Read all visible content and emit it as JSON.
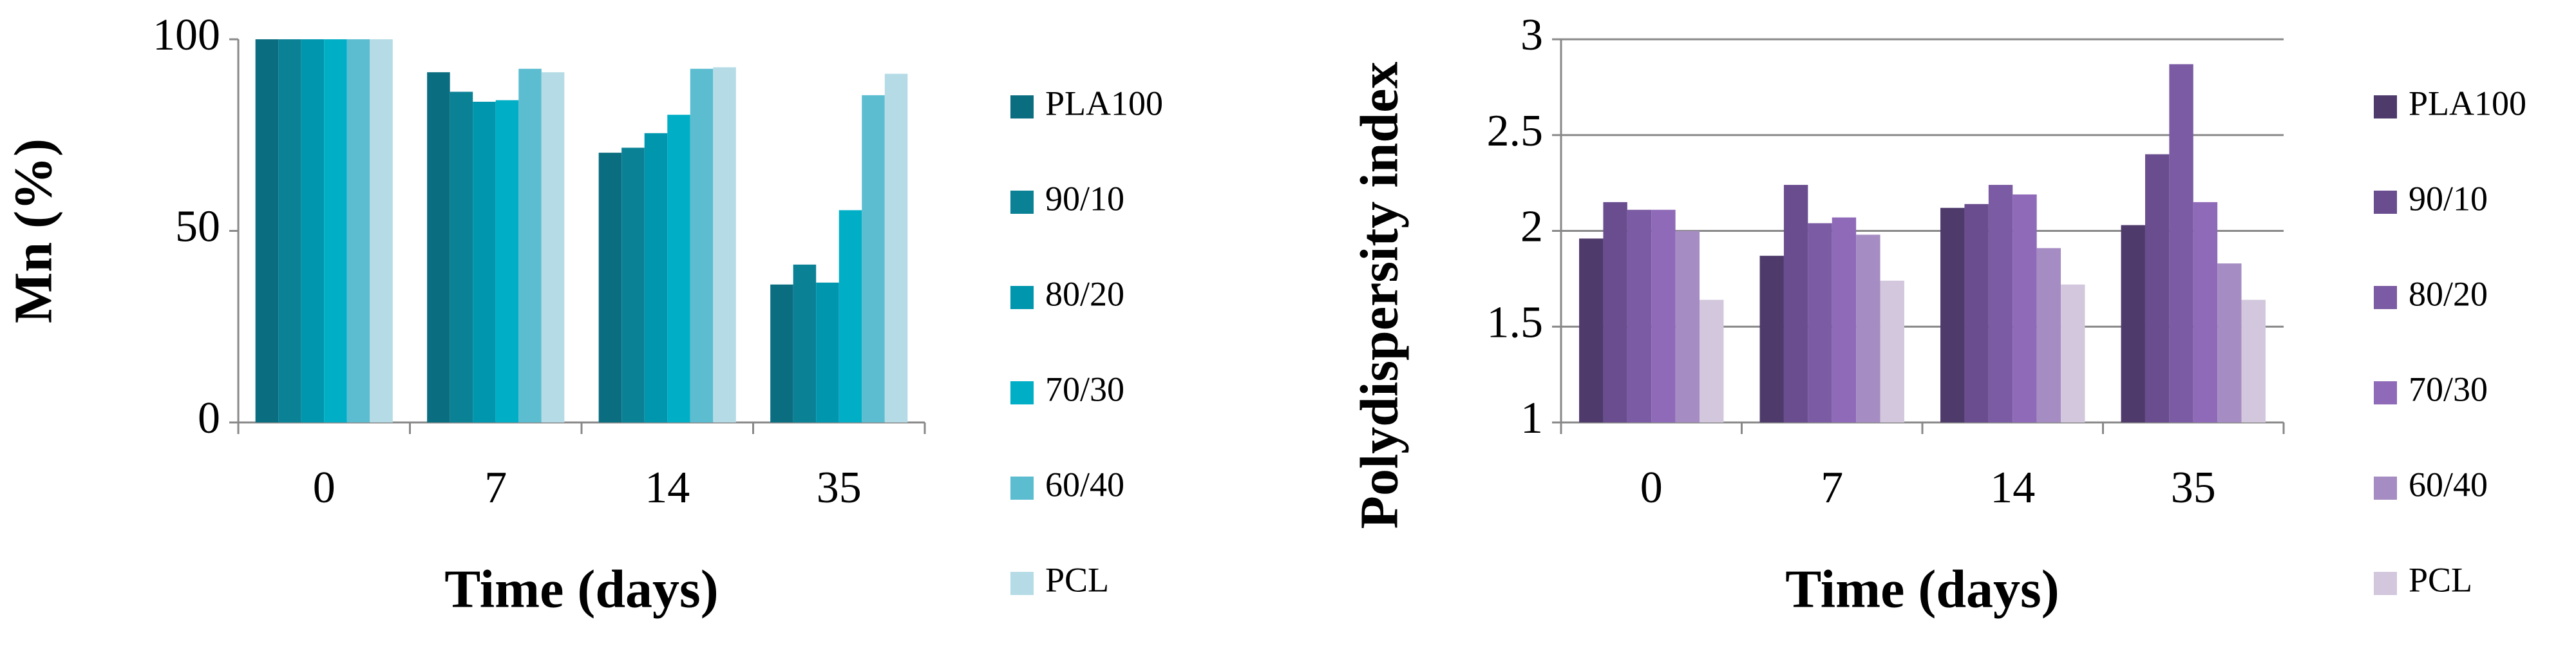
{
  "chart_data": [
    {
      "type": "bar",
      "ylabel": "Mn (%)",
      "xlabel": "Time (days)",
      "categories": [
        "0",
        "7",
        "14",
        "35"
      ],
      "ylim": [
        0,
        100
      ],
      "yticks": [
        0,
        50,
        100
      ],
      "grid": false,
      "series": [
        {
          "name": "PLA100",
          "color": "#0b6e80",
          "values": [
            100,
            91.4,
            70.4,
            36
          ]
        },
        {
          "name": "90/10",
          "color": "#0b8196",
          "values": [
            100,
            86.3,
            71.7,
            41.2
          ]
        },
        {
          "name": "80/20",
          "color": "#0096ad",
          "values": [
            100,
            83.7,
            75.5,
            36.5
          ]
        },
        {
          "name": "70/30",
          "color": "#00aec6",
          "values": [
            100,
            84.1,
            80.3,
            55.4
          ]
        },
        {
          "name": "60/40",
          "color": "#5cbdd1",
          "values": [
            100,
            92.3,
            92.3,
            85.4
          ]
        },
        {
          "name": "PCL",
          "color": "#b5dce6",
          "values": [
            100,
            91.4,
            92.7,
            91
          ]
        }
      ]
    },
    {
      "type": "bar",
      "ylabel": "Polydispersity index",
      "xlabel": "Time (days)",
      "categories": [
        "0",
        "7",
        "14",
        "35"
      ],
      "ylim": [
        1,
        3
      ],
      "yticks": [
        1,
        1.5,
        2,
        2.5,
        3
      ],
      "grid": true,
      "series": [
        {
          "name": "PLA100",
          "color": "#4e3a6b",
          "values": [
            1.96,
            1.87,
            2.12,
            2.03
          ]
        },
        {
          "name": "90/10",
          "color": "#6a4d8f",
          "values": [
            2.15,
            2.24,
            2.14,
            2.4
          ]
        },
        {
          "name": "80/20",
          "color": "#7b5ba3",
          "values": [
            2.11,
            2.04,
            2.24,
            2.87
          ]
        },
        {
          "name": "70/30",
          "color": "#8f6ab8",
          "values": [
            2.11,
            2.07,
            2.19,
            2.15
          ]
        },
        {
          "name": "60/40",
          "color": "#a58cc2",
          "values": [
            2,
            1.98,
            1.91,
            1.83
          ]
        },
        {
          "name": "PCL",
          "color": "#d2c7dd",
          "values": [
            1.64,
            1.74,
            1.72,
            1.64
          ]
        }
      ]
    }
  ]
}
